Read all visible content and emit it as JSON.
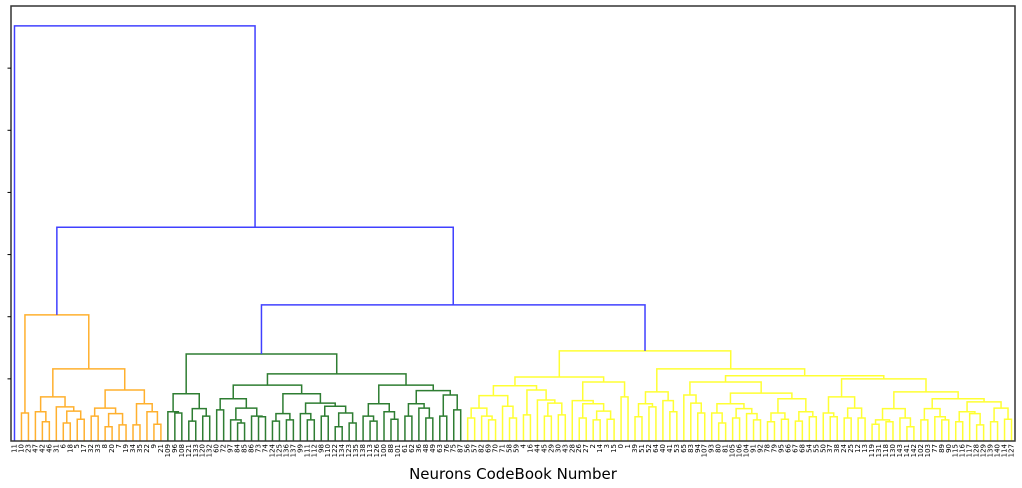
{
  "chart_data": {
    "type": "dendrogram",
    "title": "",
    "xlabel": "Neurons CodeBook Number",
    "ylabel": "",
    "ylim": [
      0,
      7
    ],
    "yticks": [
      1,
      2,
      3,
      4,
      5,
      6
    ],
    "ytick_labels_visible": false,
    "grid": false,
    "colors": {
      "above_threshold": "#4040ff",
      "orange": "#ffb02e",
      "green": "#2e7d32",
      "yellow": "#ffff33"
    },
    "leaf_labels": [
      "11",
      "10",
      "23",
      "47",
      "42",
      "46",
      "31",
      "6",
      "18",
      "5",
      "17",
      "32",
      "33",
      "8",
      "20",
      "7",
      "19",
      "34",
      "35",
      "22",
      "9",
      "21",
      "109",
      "96",
      "108",
      "121",
      "133",
      "120",
      "132",
      "60",
      "72",
      "97",
      "84",
      "85",
      "86",
      "73",
      "74",
      "124",
      "125",
      "136",
      "137",
      "99",
      "111",
      "112",
      "98",
      "110",
      "122",
      "134",
      "123",
      "135",
      "138",
      "113",
      "126",
      "100",
      "88",
      "101",
      "61",
      "62",
      "36",
      "48",
      "49",
      "63",
      "76",
      "75",
      "87",
      "56",
      "57",
      "82",
      "69",
      "70",
      "71",
      "58",
      "59",
      "4",
      "16",
      "44",
      "45",
      "29",
      "30",
      "43",
      "28",
      "26",
      "27",
      "2",
      "14",
      "3",
      "15",
      "0",
      "1",
      "39",
      "51",
      "52",
      "64",
      "40",
      "41",
      "53",
      "65",
      "83",
      "94",
      "107",
      "93",
      "80",
      "81",
      "105",
      "106",
      "104",
      "91",
      "92",
      "78",
      "79",
      "95",
      "66",
      "67",
      "68",
      "54",
      "55",
      "50",
      "37",
      "38",
      "24",
      "25",
      "12",
      "13",
      "119",
      "131",
      "118",
      "130",
      "143",
      "141",
      "142",
      "102",
      "103",
      "77",
      "89",
      "90",
      "115",
      "116",
      "117",
      "128",
      "129",
      "139",
      "140",
      "114",
      "127"
    ],
    "tree": [
      0,
      [
        {
          "cluster": "orange",
          "node": [
            [
              1,
              2,
              0.45
            ],
            [
              [
                [
                  3,
                  [
                    4,
                    5,
                    0.31
                  ],
                  0.47
                ],
                [
                  6,
                  [
                    [
                      7,
                      8,
                      0.29
                    ],
                    [
                      9,
                      10,
                      0.35
                    ],
                    0.48
                  ],
                  0.55
                ],
                0.71
              ],
              [
                [
                  [
                    11,
                    12,
                    0.4
                  ],
                  [
                    [
                      13,
                      14,
                      0.23
                    ],
                    [
                      15,
                      16,
                      0.26
                    ],
                    0.44
                  ],
                  0.53
                ],
                [
                  [
                    17,
                    18,
                    0.26
                  ],
                  [
                    19,
                    [
                      20,
                      21,
                      0.27
                    ],
                    0.47
                  ],
                  0.6
                ],
                0.82
              ],
              1.16
            ],
            2.03
          ]
        },
        [
          {
            "cluster": "green",
            "node": [
              [
                [
                  22,
                  [
                    23,
                    24,
                    0.45
                  ],
                  0.47
                ],
                [
                  [
                    25,
                    26,
                    0.32
                  ],
                  [
                    27,
                    28,
                    0.4
                  ],
                  0.52
                ],
                0.76
              ],
              [
                [
                  [
                    [
                      29,
                      30,
                      0.5
                    ],
                    [
                      [
                        31,
                        [
                          32,
                          33,
                          0.29
                        ],
                        0.34
                      ],
                      [
                        34,
                        [
                          35,
                          36,
                          0.39
                        ],
                        0.4
                      ],
                      0.53
                    ],
                    0.68
                  ],
                  [
                    [
                      [
                        37,
                        38,
                        0.32
                      ],
                      [
                        39,
                        40,
                        0.34
                      ],
                      0.44
                    ],
                    [
                      [
                        41,
                        [
                          42,
                          43,
                          0.34
                        ],
                        0.44
                      ],
                      [
                        [
                          44,
                          45,
                          0.4
                        ],
                        [
                          [
                            46,
                            47,
                            0.23
                          ],
                          [
                            48,
                            49,
                            0.29
                          ],
                          0.45
                        ],
                        0.56
                      ],
                      0.61
                    ],
                    0.76
                  ],
                  0.9
                ],
                [
                  [
                    [
                      50,
                      [
                        51,
                        52,
                        0.32
                      ],
                      0.4
                    ],
                    [
                      53,
                      [
                        54,
                        55,
                        0.35
                      ],
                      0.47
                    ],
                    0.6
                  ],
                  [
                    [
                      [
                        56,
                        57,
                        0.4
                      ],
                      [
                        58,
                        [
                          59,
                          60,
                          0.37
                        ],
                        0.53
                      ],
                      0.6
                    ],
                    [
                      [
                        61,
                        62,
                        0.4
                      ],
                      [
                        63,
                        64,
                        0.5
                      ],
                      0.74
                    ],
                    0.81
                  ],
                  0.9
                ],
                1.08
              ],
              1.4
            ]
          },
          {
            "cluster": "yellow",
            "node": [
              [
                [
                  [
                    [
                      [
                        65,
                        66,
                        0.37
                      ],
                      [
                        67,
                        [
                          68,
                          69,
                          0.34
                        ],
                        0.4
                      ],
                      0.53
                    ],
                    [
                      70,
                      [
                        71,
                        72,
                        0.37
                      ],
                      0.56
                    ],
                    0.73
                  ],
                  [
                    [
                      73,
                      74,
                      0.42
                    ],
                    [
                      75,
                      [
                        [
                          76,
                          77,
                          0.4
                        ],
                        [
                          78,
                          79,
                          0.42
                        ],
                        0.61
                      ],
                      0.66
                    ],
                    0.82
                  ],
                  0.89
                ],
                [
                  [
                    80,
                    [
                      [
                        81,
                        82,
                        0.37
                      ],
                      [
                        [
                          83,
                          84,
                          0.34
                        ],
                        [
                          85,
                          86,
                          0.35
                        ],
                        0.48
                      ],
                      0.6
                    ],
                    0.65
                  ],
                  [
                    87,
                    88,
                    0.71
                  ],
                  0.95
                ],
                1.03
              ],
              [
                [
                  [
                    [
                      89,
                      90,
                      0.39
                    ],
                    [
                      91,
                      92,
                      0.55
                    ],
                    0.6
                  ],
                  [
                    93,
                    [
                      94,
                      95,
                      0.47
                    ],
                    0.65
                  ],
                  0.79
                ],
                [
                  [
                    [
                      96,
                      [
                        97,
                        [
                          98,
                          99,
                          0.45
                        ],
                        0.61
                      ],
                      0.74
                    ],
                    [
                      [
                        [
                          100,
                          [
                            101,
                            102,
                            0.29
                          ],
                          0.45
                        ],
                        [
                          [
                            103,
                            104,
                            0.37
                          ],
                          [
                            105,
                            [
                              106,
                              107,
                              0.34
                            ],
                            0.44
                          ],
                          0.52
                        ],
                        0.6
                      ],
                      [
                        [
                          [
                            108,
                            109,
                            0.31
                          ],
                          [
                            110,
                            111,
                            0.35
                          ],
                          0.45
                        ],
                        [
                          [
                            112,
                            113,
                            0.32
                          ],
                          [
                            114,
                            115,
                            0.39
                          ],
                          0.47
                        ],
                        0.68
                      ],
                      0.77
                    ],
                    0.95
                  ],
                  [
                    [
                      [
                        116,
                        [
                          117,
                          118,
                          0.39
                        ],
                        0.45
                      ],
                      [
                        [
                          119,
                          120,
                          0.37
                        ],
                        [
                          121,
                          122,
                          0.37
                        ],
                        0.53
                      ],
                      0.71
                    ],
                    [
                      [
                        [
                          [
                            123,
                            124,
                            0.27
                          ],
                          [
                            125,
                            126,
                            0.31
                          ],
                          0.34
                        ],
                        [
                          127,
                          [
                            128,
                            129,
                            0.23
                          ],
                          0.37
                        ],
                        0.52
                      ],
                      [
                        [
                          [
                            130,
                            131,
                            0.34
                          ],
                          [
                            132,
                            [
                              133,
                              134,
                              0.34
                            ],
                            0.39
                          ],
                          0.52
                        ],
                        [
                          [
                            [
                              135,
                              136,
                              0.31
                            ],
                            [
                              137,
                              [
                                138,
                                139,
                                0.26
                              ],
                              0.44
                            ],
                            0.47
                          ],
                          [
                            [
                              140,
                              141,
                              0.31
                            ],
                            [
                              142,
                              143,
                              0.35
                            ],
                            0.53
                          ],
                          0.63
                        ],
                        0.68
                      ],
                      0.79
                    ],
                    1.0
                  ],
                  1.05
                ],
                1.16
              ],
              1.45
            ]
          },
          2.19
        ],
        3.44
      ],
      6.68
    ]
  }
}
